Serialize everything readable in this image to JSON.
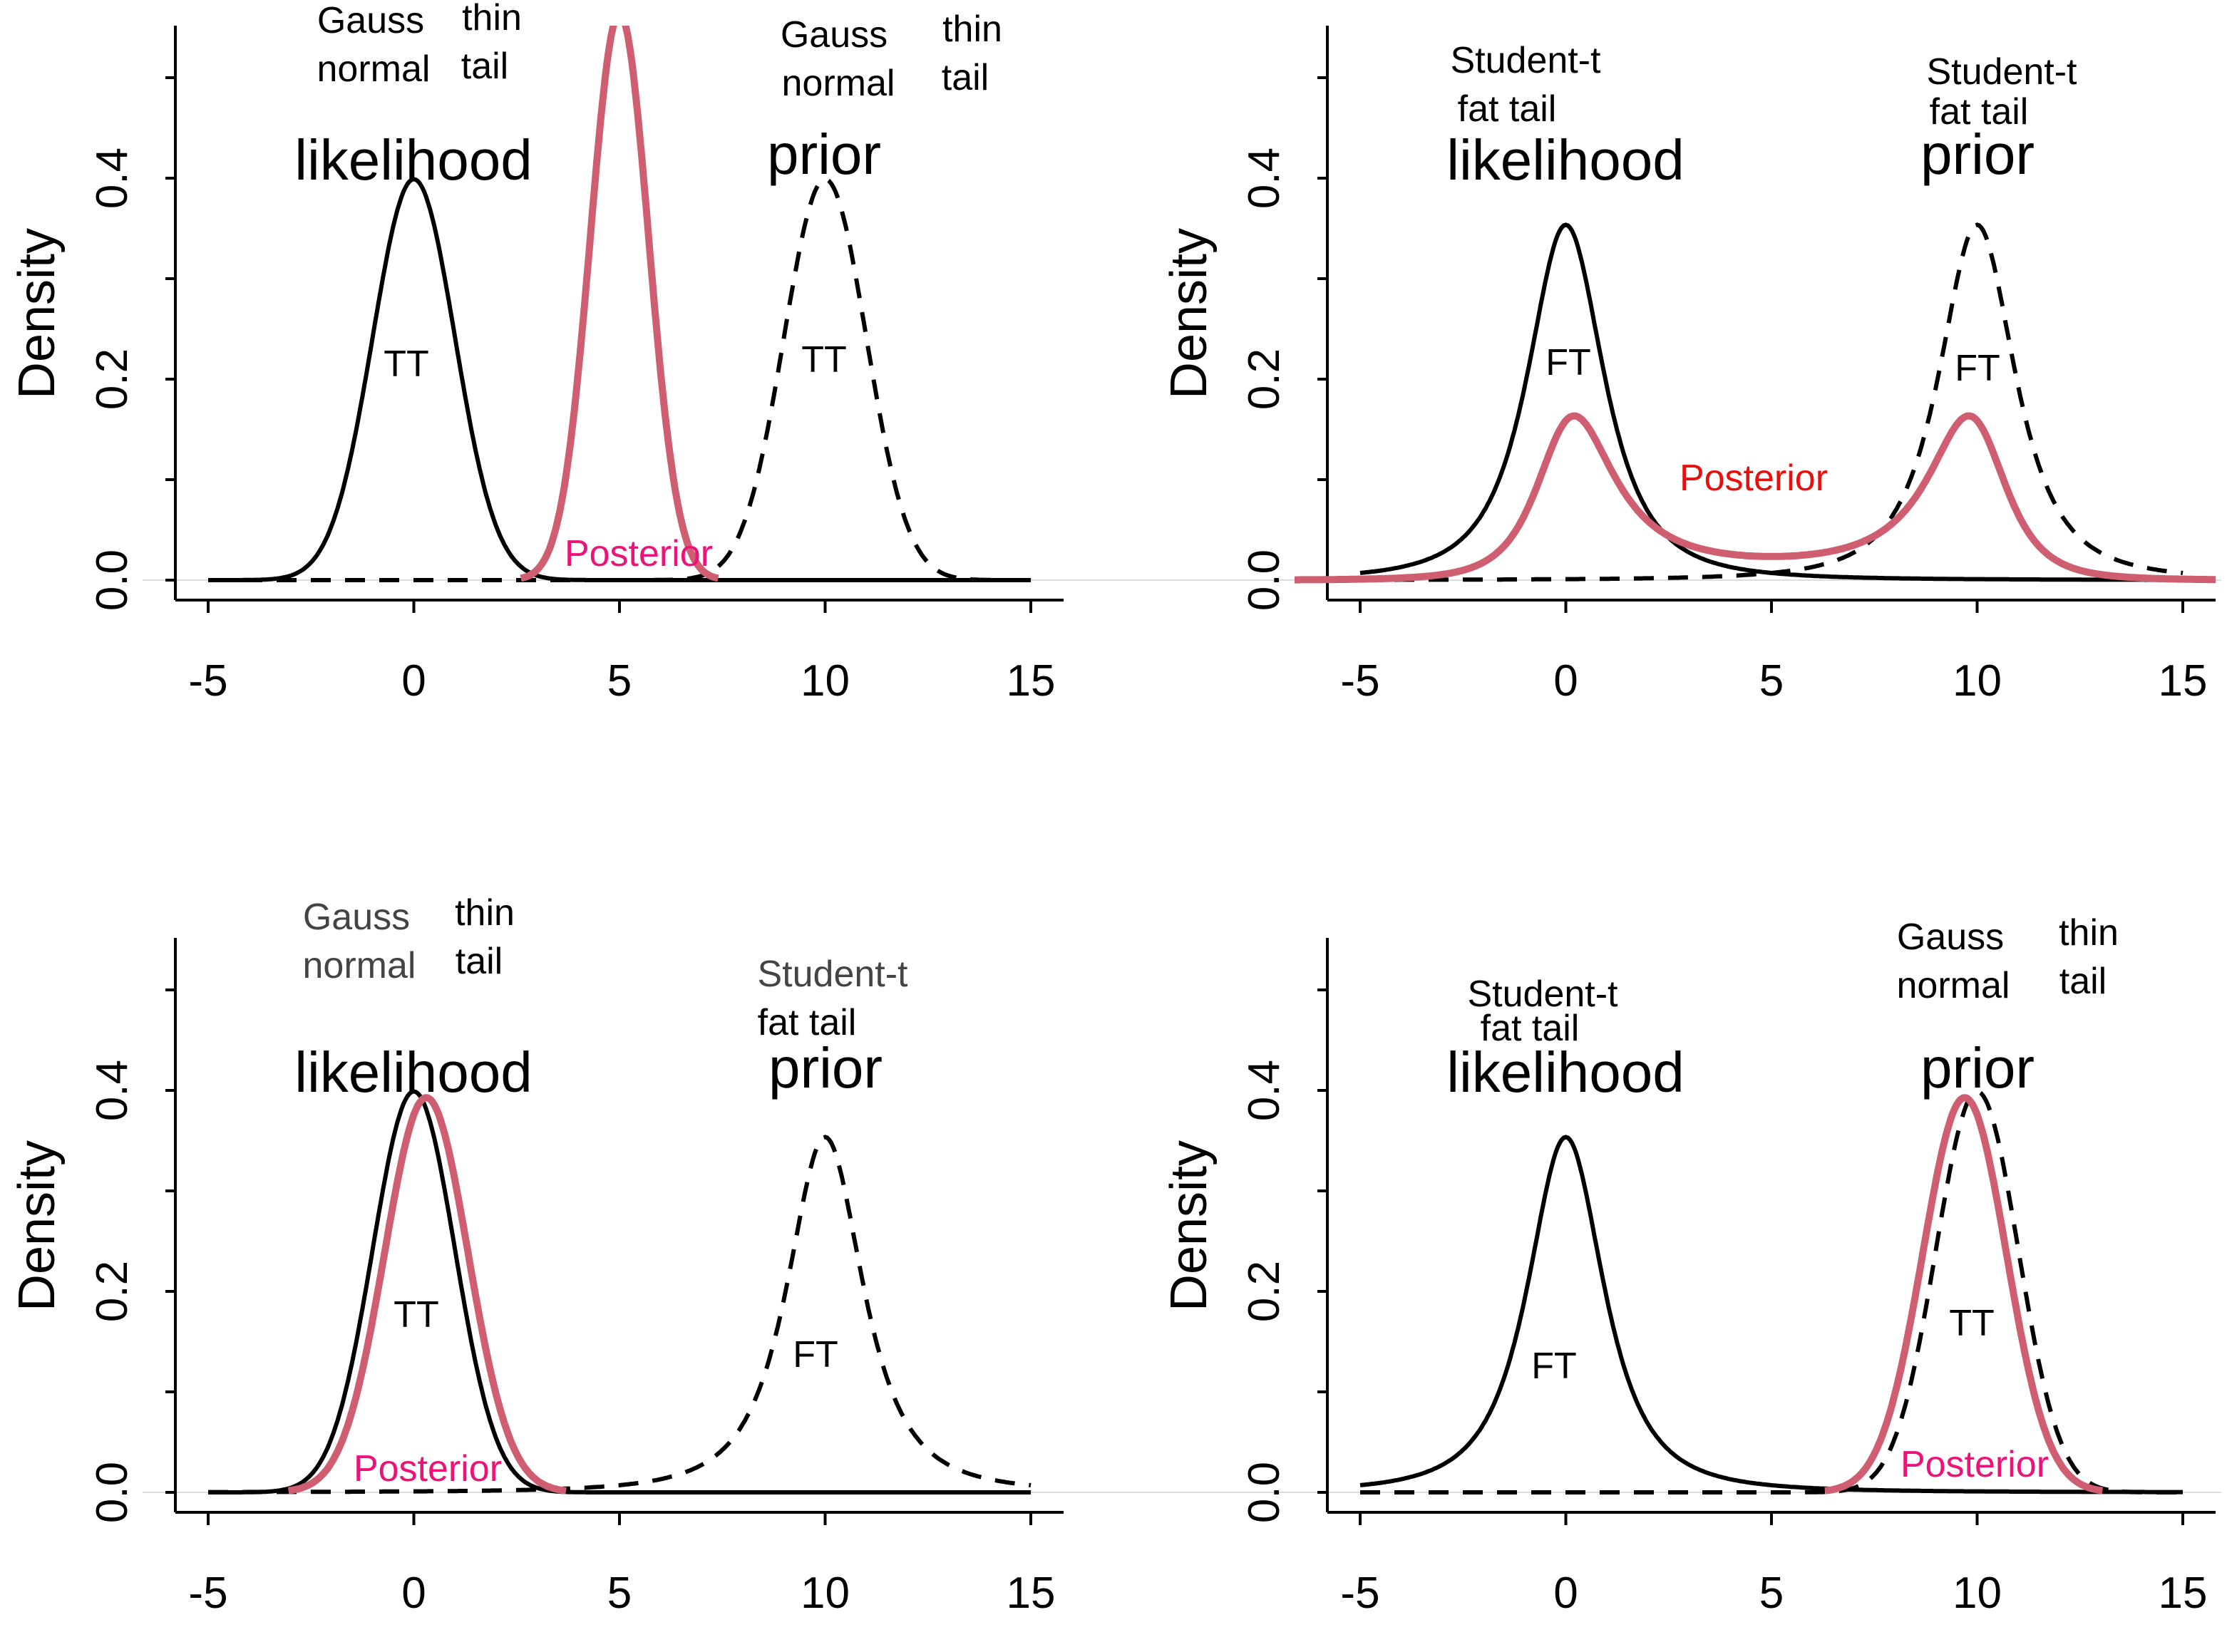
{
  "chart_data": [
    {
      "type": "line",
      "ylabel": "Density",
      "x_ticks": [
        "-5",
        "0",
        "5",
        "10",
        "15"
      ],
      "y_ticks": [
        "0.0",
        "0.2",
        "0.4"
      ],
      "xlim": [
        -5,
        15
      ],
      "ylim": [
        0,
        0.55
      ],
      "series": [
        {
          "role": "likelihood",
          "dist": "normal",
          "mean": 0,
          "sd": 1,
          "style": "solid",
          "color": "#000000"
        },
        {
          "role": "prior",
          "dist": "normal",
          "mean": 10,
          "sd": 1,
          "style": "dashed",
          "color": "#000000"
        },
        {
          "role": "posterior",
          "dist": "product",
          "peak_x": 5,
          "style": "solid",
          "color": "#CF5F70"
        }
      ],
      "annotations": {
        "lik_tail1": "Gauss",
        "lik_tail2": "normal",
        "lik_tail3": "thin",
        "lik_tail4": "tail",
        "lik": "likelihood",
        "lik_code": "TT",
        "pri_tail1": "Gauss",
        "pri_tail2": "normal",
        "pri_tail3": "thin",
        "pri_tail4": "tail",
        "pri": "prior",
        "pri_code": "TT",
        "post": "Posterior"
      }
    },
    {
      "type": "line",
      "ylabel": "Density",
      "x_ticks": [
        "-5",
        "0",
        "5",
        "10",
        "15"
      ],
      "y_ticks": [
        "0.0",
        "0.2",
        "0.4"
      ],
      "xlim": [
        -5,
        15
      ],
      "ylim": [
        0,
        0.55
      ],
      "series": [
        {
          "role": "likelihood",
          "dist": "student-t",
          "location": 0,
          "df": 2,
          "style": "solid",
          "color": "#000000"
        },
        {
          "role": "prior",
          "dist": "student-t",
          "location": 10,
          "df": 2,
          "style": "dashed",
          "color": "#000000"
        },
        {
          "role": "posterior",
          "dist": "product",
          "peaks_x": [
            0.2,
            9.8
          ],
          "style": "solid",
          "color": "#CF5F70"
        }
      ],
      "annotations": {
        "lik_tail1": "Student-t",
        "lik_tail2": "fat tail",
        "lik": "likelihood",
        "lik_code": "FT",
        "pri_tail1": "Student-t",
        "pri_tail2": "fat tail",
        "pri": "prior",
        "pri_code": "FT",
        "post": "Posterior"
      }
    },
    {
      "type": "line",
      "ylabel": "Density",
      "x_ticks": [
        "-5",
        "0",
        "5",
        "10",
        "15"
      ],
      "y_ticks": [
        "0.0",
        "0.2",
        "0.4"
      ],
      "xlim": [
        -5,
        15
      ],
      "ylim": [
        0,
        0.55
      ],
      "series": [
        {
          "role": "likelihood",
          "dist": "normal",
          "mean": 0,
          "sd": 1,
          "style": "solid",
          "color": "#000000"
        },
        {
          "role": "prior",
          "dist": "student-t",
          "location": 10,
          "df": 2,
          "style": "dashed",
          "color": "#000000"
        },
        {
          "role": "posterior",
          "dist": "product",
          "peak_x": 0.2,
          "style": "solid",
          "color": "#CF5F70"
        }
      ],
      "annotations": {
        "lik_tail1": "Gauss",
        "lik_tail2": "normal",
        "lik_tail3": "thin",
        "lik_tail4": "tail",
        "lik": "likelihood",
        "lik_code": "TT",
        "pri_tail1": "Student-t",
        "pri_tail2": "fat tail",
        "pri": "prior",
        "pri_code": "FT",
        "post": "Posterior"
      }
    },
    {
      "type": "line",
      "ylabel": "Density",
      "x_ticks": [
        "-5",
        "0",
        "5",
        "10",
        "15"
      ],
      "y_ticks": [
        "0.0",
        "0.2",
        "0.4"
      ],
      "xlim": [
        -5,
        15
      ],
      "ylim": [
        0,
        0.55
      ],
      "series": [
        {
          "role": "likelihood",
          "dist": "student-t",
          "location": 0,
          "df": 2,
          "style": "solid",
          "color": "#000000"
        },
        {
          "role": "prior",
          "dist": "normal",
          "mean": 10,
          "sd": 1,
          "style": "dashed",
          "color": "#000000"
        },
        {
          "role": "posterior",
          "dist": "product",
          "peak_x": 9.8,
          "style": "solid",
          "color": "#CF5F70"
        }
      ],
      "annotations": {
        "lik_tail1": "Student-t",
        "lik_tail2": "fat tail",
        "lik": "likelihood",
        "lik_code": "FT",
        "pri_tail1": "Gauss",
        "pri_tail2": "normal",
        "pri_tail3": "thin",
        "pri_tail4": "tail",
        "pri": "prior",
        "pri_code": "TT",
        "post": "Posterior"
      }
    }
  ],
  "colors": {
    "posterior_line": "#CF5F70",
    "posterior_label_pink": "#EE1177",
    "posterior_label_red": "#E8100C",
    "zero_line": "#DDDDDD"
  }
}
